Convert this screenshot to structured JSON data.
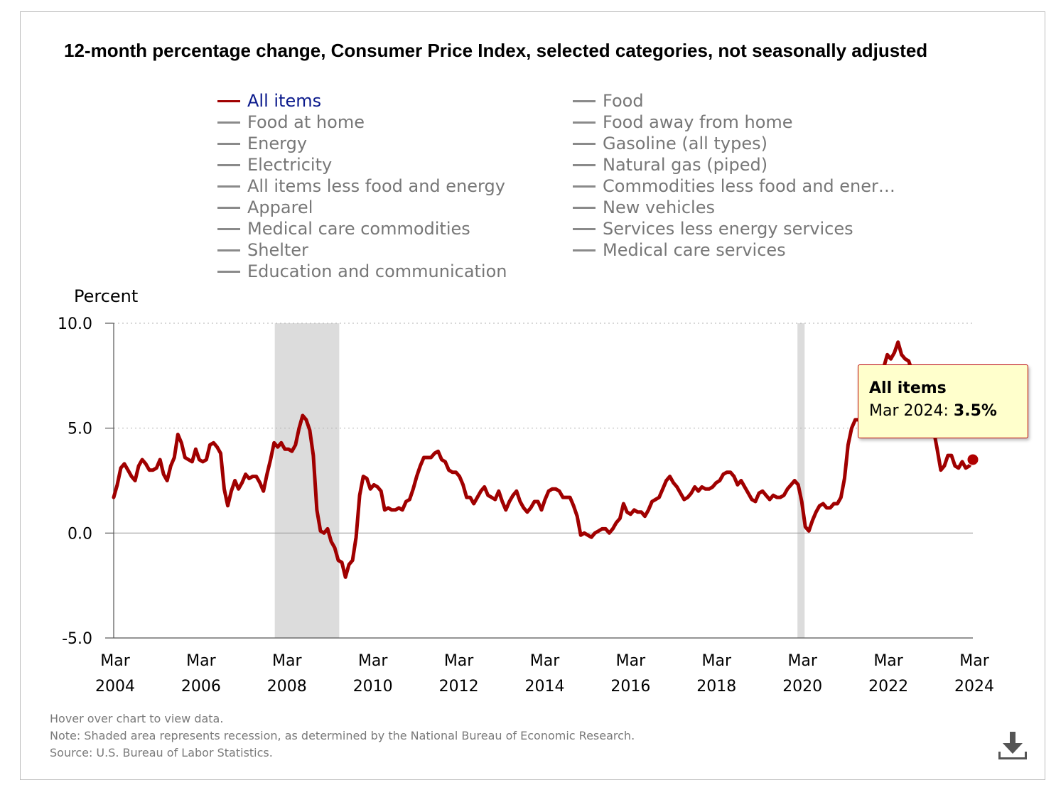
{
  "chart_data": {
    "type": "line",
    "title": "12-month percentage change, Consumer Price Index, selected categories, not seasonally adjusted",
    "ylabel": "Percent",
    "ylim": [
      -5,
      10
    ],
    "yticks": [
      "10.0",
      "5.0",
      "0.0",
      "-5.0"
    ],
    "xticks": [
      {
        "month": "Mar",
        "year": "2004"
      },
      {
        "month": "Mar",
        "year": "2006"
      },
      {
        "month": "Mar",
        "year": "2008"
      },
      {
        "month": "Mar",
        "year": "2010"
      },
      {
        "month": "Mar",
        "year": "2012"
      },
      {
        "month": "Mar",
        "year": "2014"
      },
      {
        "month": "Mar",
        "year": "2016"
      },
      {
        "month": "Mar",
        "year": "2018"
      },
      {
        "month": "Mar",
        "year": "2020"
      },
      {
        "month": "Mar",
        "year": "2022"
      },
      {
        "month": "Mar",
        "year": "2024"
      }
    ],
    "x_start": "Mar 2004",
    "x_end": "Mar 2024",
    "recessions": [
      {
        "start": "Dec 2007",
        "end": "Jun 2009"
      },
      {
        "start": "Feb 2020",
        "end": "Apr 2020"
      }
    ],
    "series": [
      {
        "name": "All items",
        "color": "#a00000",
        "values": [
          1.7,
          2.3,
          3.1,
          3.3,
          3.0,
          2.7,
          2.5,
          3.2,
          3.5,
          3.3,
          3.0,
          3.0,
          3.1,
          3.5,
          2.8,
          2.5,
          3.2,
          3.6,
          4.7,
          4.3,
          3.6,
          3.5,
          3.4,
          4.0,
          3.5,
          3.4,
          3.5,
          4.2,
          4.3,
          4.1,
          3.8,
          2.1,
          1.3,
          2.0,
          2.5,
          2.1,
          2.4,
          2.8,
          2.6,
          2.7,
          2.7,
          2.4,
          2.0,
          2.8,
          3.5,
          4.3,
          4.1,
          4.3,
          4.0,
          4.0,
          3.9,
          4.2,
          5.0,
          5.6,
          5.4,
          4.9,
          3.7,
          1.1,
          0.1,
          0.0,
          0.2,
          -0.4,
          -0.7,
          -1.3,
          -1.4,
          -2.1,
          -1.5,
          -1.3,
          -0.2,
          1.8,
          2.7,
          2.6,
          2.1,
          2.3,
          2.2,
          2.0,
          1.1,
          1.2,
          1.1,
          1.1,
          1.2,
          1.1,
          1.5,
          1.6,
          2.1,
          2.7,
          3.2,
          3.6,
          3.6,
          3.6,
          3.8,
          3.9,
          3.5,
          3.4,
          3.0,
          2.9,
          2.9,
          2.7,
          2.3,
          1.7,
          1.7,
          1.4,
          1.7,
          2.0,
          2.2,
          1.8,
          1.7,
          1.6,
          2.0,
          1.5,
          1.1,
          1.5,
          1.8,
          2.0,
          1.5,
          1.2,
          1.0,
          1.2,
          1.5,
          1.5,
          1.1,
          1.6,
          2.0,
          2.1,
          2.1,
          2.0,
          1.7,
          1.7,
          1.7,
          1.3,
          0.8,
          -0.1,
          0.0,
          -0.1,
          -0.2,
          0.0,
          0.1,
          0.2,
          0.2,
          0.0,
          0.2,
          0.5,
          0.7,
          1.4,
          1.0,
          0.9,
          1.1,
          1.0,
          1.0,
          0.8,
          1.1,
          1.5,
          1.6,
          1.7,
          2.1,
          2.5,
          2.7,
          2.4,
          2.2,
          1.9,
          1.6,
          1.7,
          1.9,
          2.2,
          2.0,
          2.2,
          2.1,
          2.1,
          2.2,
          2.4,
          2.5,
          2.8,
          2.9,
          2.9,
          2.7,
          2.3,
          2.5,
          2.2,
          1.9,
          1.6,
          1.5,
          1.9,
          2.0,
          1.8,
          1.6,
          1.8,
          1.7,
          1.7,
          1.8,
          2.1,
          2.3,
          2.5,
          2.3,
          1.5,
          0.3,
          0.1,
          0.6,
          1.0,
          1.3,
          1.4,
          1.2,
          1.2,
          1.4,
          1.4,
          1.7,
          2.6,
          4.2,
          5.0,
          5.4,
          5.4,
          5.3,
          5.4,
          6.2,
          6.8,
          7.0,
          7.5,
          7.9,
          8.5,
          8.3,
          8.6,
          9.1,
          8.5,
          8.3,
          8.2,
          7.7,
          7.1,
          6.5,
          6.4,
          6.0,
          5.0,
          4.9,
          4.0,
          3.0,
          3.2,
          3.7,
          3.7,
          3.2,
          3.1,
          3.4,
          3.1,
          3.2,
          3.5
        ]
      }
    ],
    "highlight": {
      "series": "All items",
      "date": "Mar 2024",
      "value": 3.5
    }
  },
  "legend": [
    {
      "label": "All items",
      "active": true
    },
    {
      "label": "Food",
      "active": false
    },
    {
      "label": "Food at home",
      "active": false
    },
    {
      "label": "Food away from home",
      "active": false
    },
    {
      "label": "Energy",
      "active": false
    },
    {
      "label": "Gasoline (all types)",
      "active": false
    },
    {
      "label": "Electricity",
      "active": false
    },
    {
      "label": "Natural gas (piped)",
      "active": false
    },
    {
      "label": "All items less food and energy",
      "active": false
    },
    {
      "label": "Commodities less food and ener…",
      "active": false
    },
    {
      "label": "Apparel",
      "active": false
    },
    {
      "label": "New vehicles",
      "active": false
    },
    {
      "label": "Medical care commodities",
      "active": false
    },
    {
      "label": "Services less energy services",
      "active": false
    },
    {
      "label": "Shelter",
      "active": false
    },
    {
      "label": "Medical care services",
      "active": false
    },
    {
      "label": "Education and communication",
      "active": false
    }
  ],
  "tooltip": {
    "title": "All items",
    "date_label": "Mar 2024:",
    "value_label": "3.5%"
  },
  "notes": [
    "Hover over chart to view data.",
    "Note: Shaded area represents recession, as determined by the National Bureau of Economic Research.",
    "Source: U.S. Bureau of Labor Statistics."
  ],
  "download_icon": "download-icon"
}
